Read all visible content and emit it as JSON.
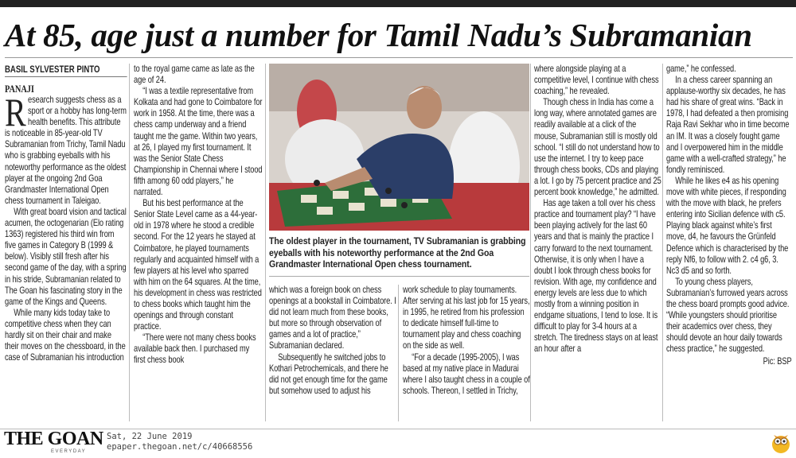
{
  "headline": "At 85, age just a number for Tamil Nadu’s Subramanian",
  "byline": "BASIL SYLVESTER PINTO",
  "dateline": "PANAJI",
  "drop_cap": "R",
  "columns": [
    [
      "esearch suggests chess as a sport or a hobby has long-term health benefits. This attribute is noticeable in 85-year-old TV Subramanian from Trichy, Tamil Nadu who is grabbing eyeballs with his noteworthy performance as the oldest player at the ongoing 2nd Goa Grandmaster International Open chess tournament in Taleigao.",
      "With great board vision and tactical acumen, the octogenarian (Elo rating 1363) registered his third win from five games in Category B (1999 & below). Visibly still fresh after his second game of the day, with a spring in his stride, Subramanian related to The Goan his fascinating story in the game of the Kings and Queens.",
      "While many kids today take to competitive chess when they can hardly sit on their chair and make their moves on the chessboard, in the case of Subramanian his introduction"
    ],
    [
      "to the royal game came as late as the age of 24.",
      "“I was a textile representative from Kolkata and had gone to Coimbatore for work in 1958. At the time, there was a chess camp underway and a friend taught me the game. Within two years, at 26, I played my first tournament. It was the Senior State Chess Championship in Chennai where I stood fifth among 60 odd players,” he narrated.",
      "But his best performance at the Senior State Level came as a 44-year-old in 1978 where he stood a credible second. For the 12 years he stayed at Coimbatore, he played tournaments regularly and acquainted himself with a few players at his level who sparred with him on the 64 squares. At the time, his development in chess was restricted to chess books which taught him the openings and through constant practice.",
      "“There were not many chess books available back then. I purchased my first chess book"
    ],
    [
      "which was a foreign book on chess openings at a bookstall in Coimbatore. I did not learn much from these books, but more so through observation of games and a lot of practice,” Subramanian declared.",
      "Subsequently he switched jobs to Kothari Petrochemicals, and there he did not get enough time for the game but somehow used to adjust his"
    ],
    [
      "work schedule to play tournaments. After serving at his last job for 15 years, in 1995, he retired from his profession to dedicate himself full-time to tournament play and chess coaching on the side as well.",
      "“For a decade (1995-2005), I was based at my native place in Madurai where I also taught chess in a couple of schools. Thereon, I settled in Trichy,"
    ],
    [
      "where alongside playing at a competitive level, I continue with chess coaching,” he revealed.",
      "Though chess in India has come a long way, where annotated games are readily available at a click of the mouse, Subramanian still is mostly old school. “I still do not understand how to use the internet. I try to keep pace through chess books, CDs and playing a lot. I go by 75 percent practice and 25 percent book knowledge,” he admitted.",
      "Has age taken a toll over his chess practice and tournament play? “I have been playing actively for the last 60 years and that is mainly the practice I carry forward to the next tournament. Otherwise, it is only when I have a doubt I look through chess books for revision. With age, my confidence and energy levels are less due to which mostly from a winning position in endgame situations, I tend to lose. It is difficult to play for 3-4 hours at a stretch. The tiredness stays on at least an hour after a"
    ],
    [
      "game,” he confessed.",
      "In a chess career spanning an applause-worthy six decades, he has had his share of great wins. “Back in 1978, I had defeated a then promising Raja Ravi Sekhar who in time become an IM. It was a closely fought game and I overpowered him in the middle game with a well-crafted strategy,” he fondly reminisced.",
      "While he likes e4 as his opening move with white pieces, if responding with the move with black, he prefers entering into Sicilian defence with c5. Playing black against white’s first move, d4, he favours the Grünfeld Defence which is characterised by the reply Nf6, to follow with 2. c4 g6, 3. Nc3 d5 and so forth.",
      "To young chess players, Subramanian’s furrowed years across the chess board prompts good advice. “While youngsters should prioritise their academics over chess, they should devote an hour daily towards chess practice,” he suggested."
    ]
  ],
  "photo_caption": "The oldest player in the tournament, TV Subramanian is grabbing eyeballs with his noteworthy performance at the 2nd Goa Grandmaster International Open chess tournament.",
  "photo_credit": "Pic: BSP",
  "footer": {
    "logo": "THE GOAN",
    "tagline": "EVERYDAY",
    "date": "Sat, 22 June 2019",
    "url": "epaper.thegoan.net/c/40668556"
  },
  "icons": {
    "mascot": "owl-icon"
  }
}
